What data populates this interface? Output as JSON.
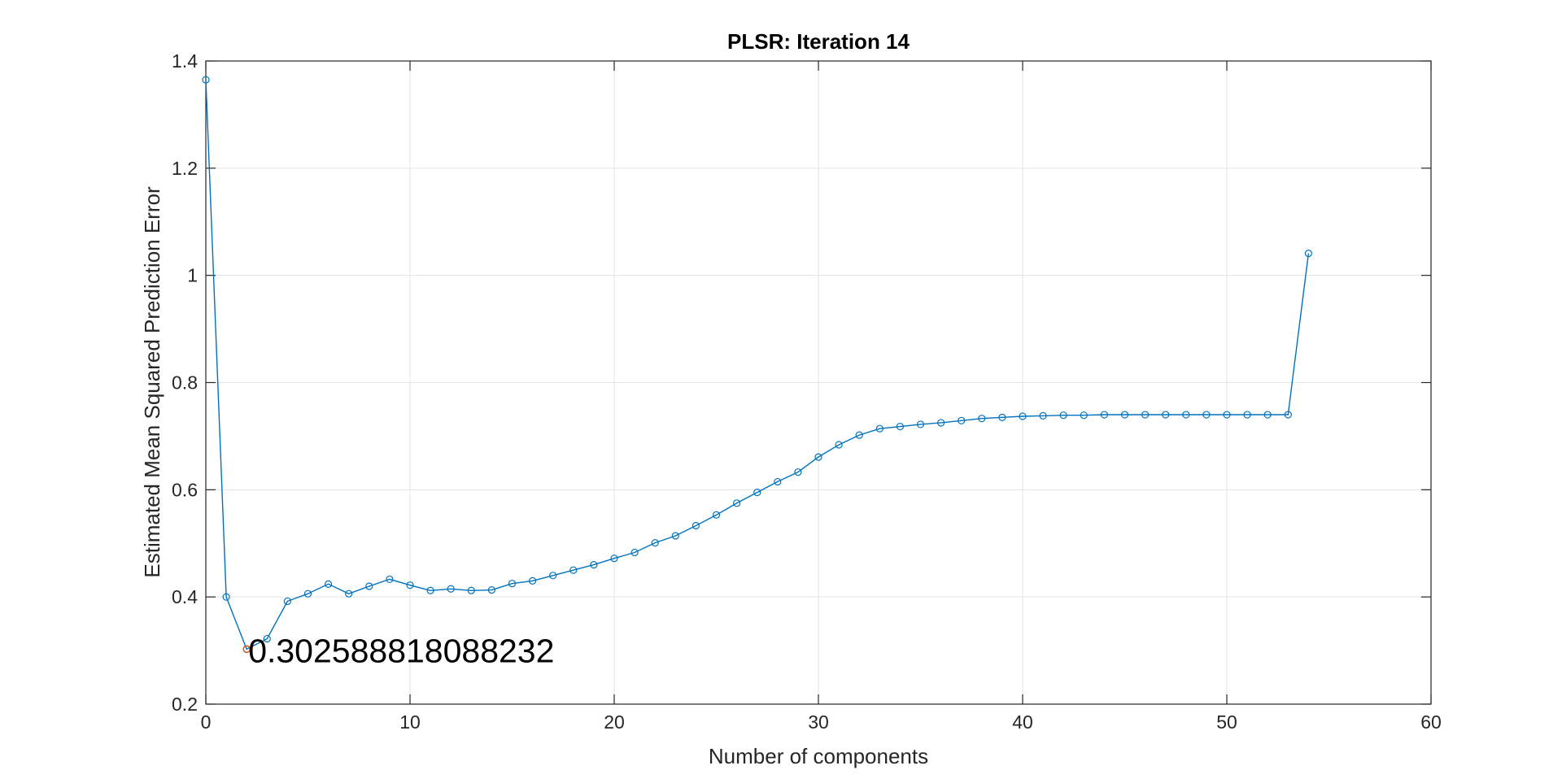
{
  "chart_data": {
    "type": "line",
    "title": "PLSR: Iteration 14",
    "xlabel": "Number of components",
    "ylabel": "Estimated Mean Squared Prediction Error",
    "xlim": [
      0,
      60
    ],
    "ylim": [
      0.2,
      1.4
    ],
    "xticks": [
      0,
      10,
      20,
      30,
      40,
      50,
      60
    ],
    "yticks": [
      0.2,
      0.4,
      0.6,
      0.8,
      1,
      1.2,
      1.4
    ],
    "grid": true,
    "series": [
      {
        "color": "#0072bd",
        "marker": "circle",
        "x": [
          0,
          1,
          2,
          3,
          4,
          5,
          6,
          7,
          8,
          9,
          10,
          11,
          12,
          13,
          14,
          15,
          16,
          17,
          18,
          19,
          20,
          21,
          22,
          23,
          24,
          25,
          26,
          27,
          28,
          29,
          30,
          31,
          32,
          33,
          34,
          35,
          36,
          37,
          38,
          39,
          40,
          41,
          42,
          43,
          44,
          45,
          46,
          47,
          48,
          49,
          50,
          51,
          52,
          53,
          54
        ],
        "y": [
          1.365,
          0.4,
          0.3026,
          0.322,
          0.392,
          0.406,
          0.424,
          0.406,
          0.42,
          0.433,
          0.422,
          0.412,
          0.415,
          0.412,
          0.413,
          0.425,
          0.43,
          0.44,
          0.45,
          0.46,
          0.472,
          0.483,
          0.501,
          0.514,
          0.533,
          0.553,
          0.575,
          0.595,
          0.615,
          0.633,
          0.661,
          0.684,
          0.702,
          0.714,
          0.718,
          0.722,
          0.725,
          0.729,
          0.733,
          0.735,
          0.737,
          0.738,
          0.739,
          0.739,
          0.74,
          0.74,
          0.74,
          0.74,
          0.74,
          0.74,
          0.74,
          0.74,
          0.74,
          0.74,
          1.041
        ]
      }
    ],
    "highlight": {
      "x": 2,
      "y": 0.3026,
      "color": "#d95319"
    },
    "annotation": {
      "text": "0.302588818088232",
      "x": 2,
      "y": 0.3026
    }
  }
}
